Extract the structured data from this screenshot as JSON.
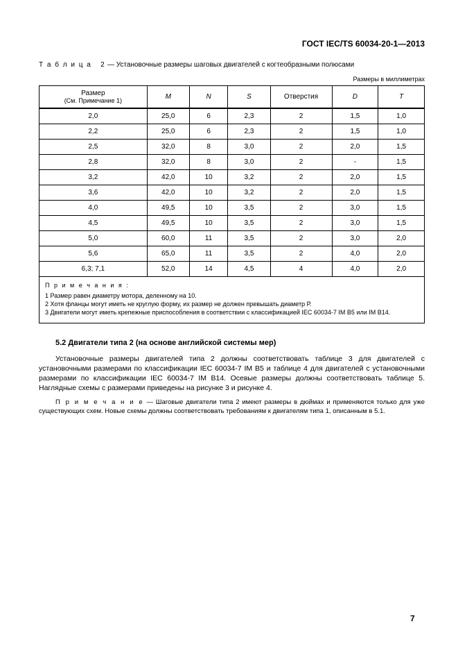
{
  "doc_id": "ГОСТ IEC/TS 60034-20-1—2013",
  "table_label_spaced": "Т а б л и ц а   2",
  "table_label_rest": " — Установочные размеры шаговых двигателей с когтеобразными полюсами",
  "units_note": "Размеры в миллиметрах",
  "headers": {
    "c0a": "Размер",
    "c0b": "(См. Примечание 1)",
    "c1": "M",
    "c2": "N",
    "c3": "S",
    "c4": "Отверстия",
    "c5": "D",
    "c6": "T"
  },
  "col_widths": [
    "28%",
    "11%",
    "10%",
    "11%",
    "16%",
    "12%",
    "12%"
  ],
  "rows": [
    [
      "2,0",
      "25,0",
      "6",
      "2,3",
      "2",
      "1,5",
      "1,0"
    ],
    [
      "2,2",
      "25,0",
      "6",
      "2,3",
      "2",
      "1,5",
      "1,0"
    ],
    [
      "2,5",
      "32,0",
      "8",
      "3,0",
      "2",
      "2,0",
      "1,5"
    ],
    [
      "2,8",
      "32,0",
      "8",
      "3,0",
      "2",
      "-",
      "1,5"
    ],
    [
      "3,2",
      "42,0",
      "10",
      "3,2",
      "2",
      "2,0",
      "1,5"
    ],
    [
      "3,6",
      "42,0",
      "10",
      "3,2",
      "2",
      "2,0",
      "1,5"
    ],
    [
      "4,0",
      "49,5",
      "10",
      "3,5",
      "2",
      "3,0",
      "1,5"
    ],
    [
      "4,5",
      "49,5",
      "10",
      "3,5",
      "2",
      "3,0",
      "1,5"
    ],
    [
      "5,0",
      "60,0",
      "11",
      "3,5",
      "2",
      "3,0",
      "2,0"
    ],
    [
      "5,6",
      "65,0",
      "11",
      "3,5",
      "2",
      "4,0",
      "2,0"
    ],
    [
      "6,3; 7,1",
      "52,0",
      "14",
      "4,5",
      "4",
      "4,0",
      "2,0"
    ]
  ],
  "footnotes_heading": "П р и м е ч а н и я :",
  "footnotes": [
    "1 Размер равен диаметру мотора, деленному на 10.",
    "2 Хотя фланцы могут иметь не круглую форму, их размер не должен превышать диаметр Р.",
    "3 Двигатели могут иметь крепежные приспособления в соответствии с классификацией IEC 60034-7 IM B5 или IM B14."
  ],
  "section_title": "5.2 Двигатели типа 2 (на основе английской системы мер)",
  "paragraph": "Установочные размеры двигателей типа 2 должны соответствовать таблице 3 для двигателей с установочными размерами по классификации IEC 60034-7 IM B5 и таблице 4 для двигателей с установочными размерами по классификации IEC 60034-7 IM B14. Осевые размеры должны соответствовать таблице 5. Наглядные схемы с размерами приведены на рисунке 3 и рисунке 4.",
  "note_label": "П р и м е ч а н и е",
  "note_text": " — Шаговые двигатели типа 2 имеют размеры в дюймах и применяются только для уже существующих схем. Новые схемы должны соответствовать требованиям к двигателям типа 1, описанным в 5.1.",
  "page_number": "7"
}
